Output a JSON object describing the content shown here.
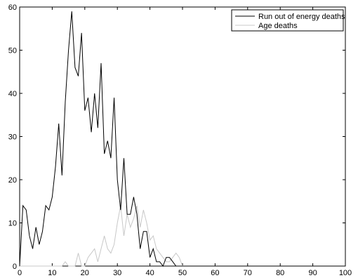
{
  "chart_data": {
    "type": "line",
    "title": "",
    "xlabel": "",
    "ylabel": "",
    "xlim": [
      0,
      100
    ],
    "ylim": [
      0,
      60
    ],
    "xticks": [
      0,
      10,
      20,
      30,
      40,
      50,
      60,
      70,
      80,
      90,
      100
    ],
    "yticks": [
      0,
      10,
      20,
      30,
      40,
      50,
      60
    ],
    "grid": false,
    "legend_position": "top-right",
    "series": [
      {
        "name": "Run out of energy deaths",
        "color": "#000000",
        "x": [
          0,
          1,
          2,
          3,
          4,
          5,
          6,
          7,
          8,
          9,
          10,
          11,
          12,
          13,
          14,
          15,
          16,
          17,
          18,
          19,
          20,
          21,
          22,
          23,
          24,
          25,
          26,
          27,
          28,
          29,
          30,
          31,
          32,
          33,
          34,
          35,
          36,
          37,
          38,
          39,
          40,
          41,
          42,
          43,
          44,
          45,
          46,
          47,
          48,
          49,
          50
        ],
        "y": [
          0,
          14,
          13,
          7,
          4,
          9,
          5,
          8,
          14,
          13,
          16,
          23,
          33,
          21,
          38,
          50,
          59,
          46,
          44,
          54,
          36,
          39,
          31,
          40,
          32,
          47,
          26,
          29,
          25,
          39,
          20,
          13,
          25,
          12,
          12,
          16,
          12,
          4,
          8,
          8,
          2,
          4,
          1,
          1,
          0,
          2,
          2,
          1,
          0,
          0,
          0
        ]
      },
      {
        "name": "Age deaths",
        "color": "#c8c8c8",
        "x": [
          0,
          1,
          2,
          3,
          4,
          5,
          6,
          7,
          8,
          9,
          10,
          11,
          12,
          13,
          14,
          15,
          16,
          17,
          18,
          19,
          20,
          21,
          22,
          23,
          24,
          25,
          26,
          27,
          28,
          29,
          30,
          31,
          32,
          33,
          34,
          35,
          36,
          37,
          38,
          39,
          40,
          41,
          42,
          43,
          44,
          45,
          46,
          47,
          48,
          49,
          50
        ],
        "y": [
          0,
          0,
          0,
          0,
          0,
          0,
          0,
          0,
          0,
          0,
          0,
          0,
          0,
          0,
          1,
          0,
          0,
          0,
          3,
          0,
          0,
          2,
          3,
          4,
          1,
          4,
          7,
          4,
          3,
          5,
          10,
          14,
          7,
          12,
          9,
          11,
          14,
          9,
          13,
          10,
          6,
          7,
          4,
          3,
          2,
          1,
          1,
          2,
          3,
          2,
          0
        ]
      }
    ]
  }
}
